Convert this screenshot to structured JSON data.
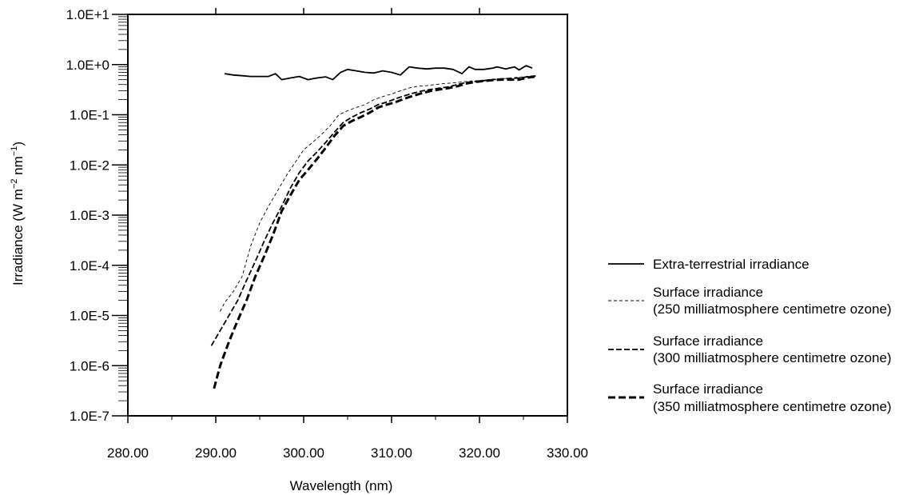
{
  "chart_data": {
    "type": "line",
    "title": "",
    "xlabel": "Wavelength (nm)",
    "ylabel_parts": {
      "prefix": "Irradiance (W m",
      "sup1": "−2",
      "middle": " nm",
      "sup2": "−1",
      "suffix": ")"
    },
    "y_scale": "log",
    "xlim": [
      280,
      330
    ],
    "ylim": [
      1e-07,
      10
    ],
    "x_ticks": [
      280,
      290,
      300,
      310,
      320,
      330
    ],
    "x_tick_labels": [
      "280.00",
      "290.00",
      "300.00",
      "310.00",
      "320.00",
      "330.00"
    ],
    "y_ticks": [
      1e-07,
      1e-06,
      1e-05,
      0.0001,
      0.001,
      0.01,
      0.1,
      1,
      10
    ],
    "y_tick_labels": [
      "1.0E-7",
      "1.0E-6",
      "1.0E-5",
      "1.0E-4",
      "1.0E-3",
      "1.0E-2",
      "1.0E-1",
      "1.0E+0",
      "1.0E+1"
    ],
    "grid": false,
    "legend_position": "right",
    "series": [
      {
        "label_lines": [
          "Extra-terrestrial irradiance"
        ],
        "style": "solid",
        "x": [
          291,
          292,
          293,
          294,
          295,
          296,
          296.8,
          297.5,
          298.5,
          299.5,
          300.5,
          301.5,
          302.5,
          303.3,
          304.2,
          305,
          306,
          307,
          308,
          309,
          310,
          311,
          312,
          313,
          314,
          315,
          316,
          317,
          318,
          318.8,
          319.5,
          320.5,
          321.5,
          322,
          323,
          324,
          324.5,
          325.3,
          326
        ],
        "y": [
          0.66,
          0.62,
          0.6,
          0.58,
          0.58,
          0.58,
          0.66,
          0.5,
          0.54,
          0.58,
          0.5,
          0.54,
          0.57,
          0.5,
          0.7,
          0.8,
          0.75,
          0.7,
          0.68,
          0.75,
          0.7,
          0.62,
          0.9,
          0.85,
          0.82,
          0.85,
          0.85,
          0.8,
          0.66,
          0.9,
          0.8,
          0.8,
          0.85,
          0.9,
          0.82,
          0.9,
          0.78,
          0.95,
          0.85
        ]
      },
      {
        "label_lines": [
          "Surface irradiance",
          "(250 milliatmosphere centimetre ozone)"
        ],
        "style": "thin-dash",
        "x": [
          290.5,
          291,
          292,
          293,
          294,
          295,
          296,
          297,
          298,
          299,
          300,
          301,
          302,
          303,
          304,
          305,
          306,
          307,
          308,
          309,
          310,
          311,
          312,
          313,
          314,
          315,
          316,
          317,
          318,
          319,
          320,
          321,
          322,
          323,
          324,
          325,
          326
        ],
        "y": [
          1.2e-05,
          1.8e-05,
          3e-05,
          6e-05,
          0.00025,
          0.0007,
          0.0015,
          0.003,
          0.006,
          0.011,
          0.02,
          0.028,
          0.04,
          0.06,
          0.1,
          0.12,
          0.14,
          0.16,
          0.2,
          0.23,
          0.26,
          0.3,
          0.34,
          0.37,
          0.38,
          0.4,
          0.42,
          0.43,
          0.45,
          0.47,
          0.48,
          0.5,
          0.52,
          0.53,
          0.55,
          0.57,
          0.6
        ]
      },
      {
        "label_lines": [
          "Surface irradiance",
          "(300 milliatmosphere centimetre ozone)"
        ],
        "style": "medium-dash",
        "x": [
          289.5,
          290.5,
          291.5,
          292.5,
          293.5,
          294.5,
          295.5,
          296.5,
          297.5,
          298.5,
          299.5,
          300.5,
          301.5,
          302.5,
          303.5,
          304.5,
          305.5,
          306.5,
          307.5,
          308.5,
          309.5,
          310.5,
          311.5,
          312.5,
          313.5,
          314.5,
          315.5,
          316.5,
          317.5,
          318.5,
          319.5,
          320.5,
          321.5,
          322.5,
          323.5,
          324.5,
          325.5,
          326.5
        ],
        "y": [
          2.5e-06,
          5e-06,
          1e-05,
          2e-05,
          5e-05,
          0.00012,
          0.0003,
          0.0007,
          0.0015,
          0.0035,
          0.007,
          0.012,
          0.018,
          0.028,
          0.045,
          0.07,
          0.09,
          0.11,
          0.13,
          0.16,
          0.18,
          0.21,
          0.24,
          0.27,
          0.3,
          0.32,
          0.34,
          0.36,
          0.4,
          0.44,
          0.46,
          0.48,
          0.5,
          0.52,
          0.53,
          0.54,
          0.57,
          0.6
        ]
      },
      {
        "label_lines": [
          "Surface irradiance",
          "(350 milliatmosphere centimetre ozone)"
        ],
        "style": "thick-dash",
        "x": [
          289.8,
          290.5,
          291.5,
          292.5,
          293.5,
          294.5,
          295.5,
          296.5,
          297.5,
          298.5,
          299.5,
          300.5,
          301.5,
          302.5,
          303.5,
          304.5,
          305.5,
          306.5,
          307.5,
          308.5,
          309.5,
          310.5,
          311.5,
          312.5,
          313.5,
          314.5,
          315.5,
          316.5,
          317.5,
          318.5,
          319.5,
          320.5,
          321.5,
          322.5,
          323.5,
          324.5,
          325.5,
          326.5
        ],
        "y": [
          3.5e-07,
          1e-06,
          3e-06,
          8e-06,
          2e-05,
          6e-05,
          0.00015,
          0.0004,
          0.0012,
          0.0025,
          0.005,
          0.008,
          0.013,
          0.022,
          0.038,
          0.06,
          0.075,
          0.09,
          0.11,
          0.14,
          0.16,
          0.18,
          0.21,
          0.24,
          0.27,
          0.3,
          0.32,
          0.34,
          0.37,
          0.42,
          0.45,
          0.47,
          0.49,
          0.5,
          0.5,
          0.5,
          0.55,
          0.58
        ]
      }
    ]
  }
}
